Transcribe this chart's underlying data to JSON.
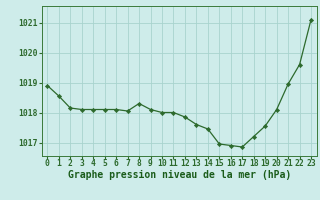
{
  "x": [
    0,
    1,
    2,
    3,
    4,
    5,
    6,
    7,
    8,
    9,
    10,
    11,
    12,
    13,
    14,
    15,
    16,
    17,
    18,
    19,
    20,
    21,
    22,
    23
  ],
  "y": [
    1018.9,
    1018.55,
    1018.15,
    1018.1,
    1018.1,
    1018.1,
    1018.1,
    1018.05,
    1018.3,
    1018.1,
    1018.0,
    1018.0,
    1017.85,
    1017.6,
    1017.45,
    1016.95,
    1016.9,
    1016.85,
    1017.2,
    1017.55,
    1018.1,
    1018.95,
    1019.6,
    1021.1
  ],
  "line_color": "#2d6a2d",
  "marker_color": "#2d6a2d",
  "bg_color": "#ceecea",
  "grid_color": "#a8d4ce",
  "border_color": "#3a7a3a",
  "title": "Graphe pression niveau de la mer (hPa)",
  "title_color": "#1a5c1a",
  "ylabel_ticks": [
    1017,
    1018,
    1019,
    1020,
    1021
  ],
  "xlim": [
    -0.5,
    23.5
  ],
  "ylim": [
    1016.55,
    1021.55
  ],
  "title_fontsize": 7.0,
  "tick_fontsize": 5.8,
  "tick_color": "#2d6a2d"
}
